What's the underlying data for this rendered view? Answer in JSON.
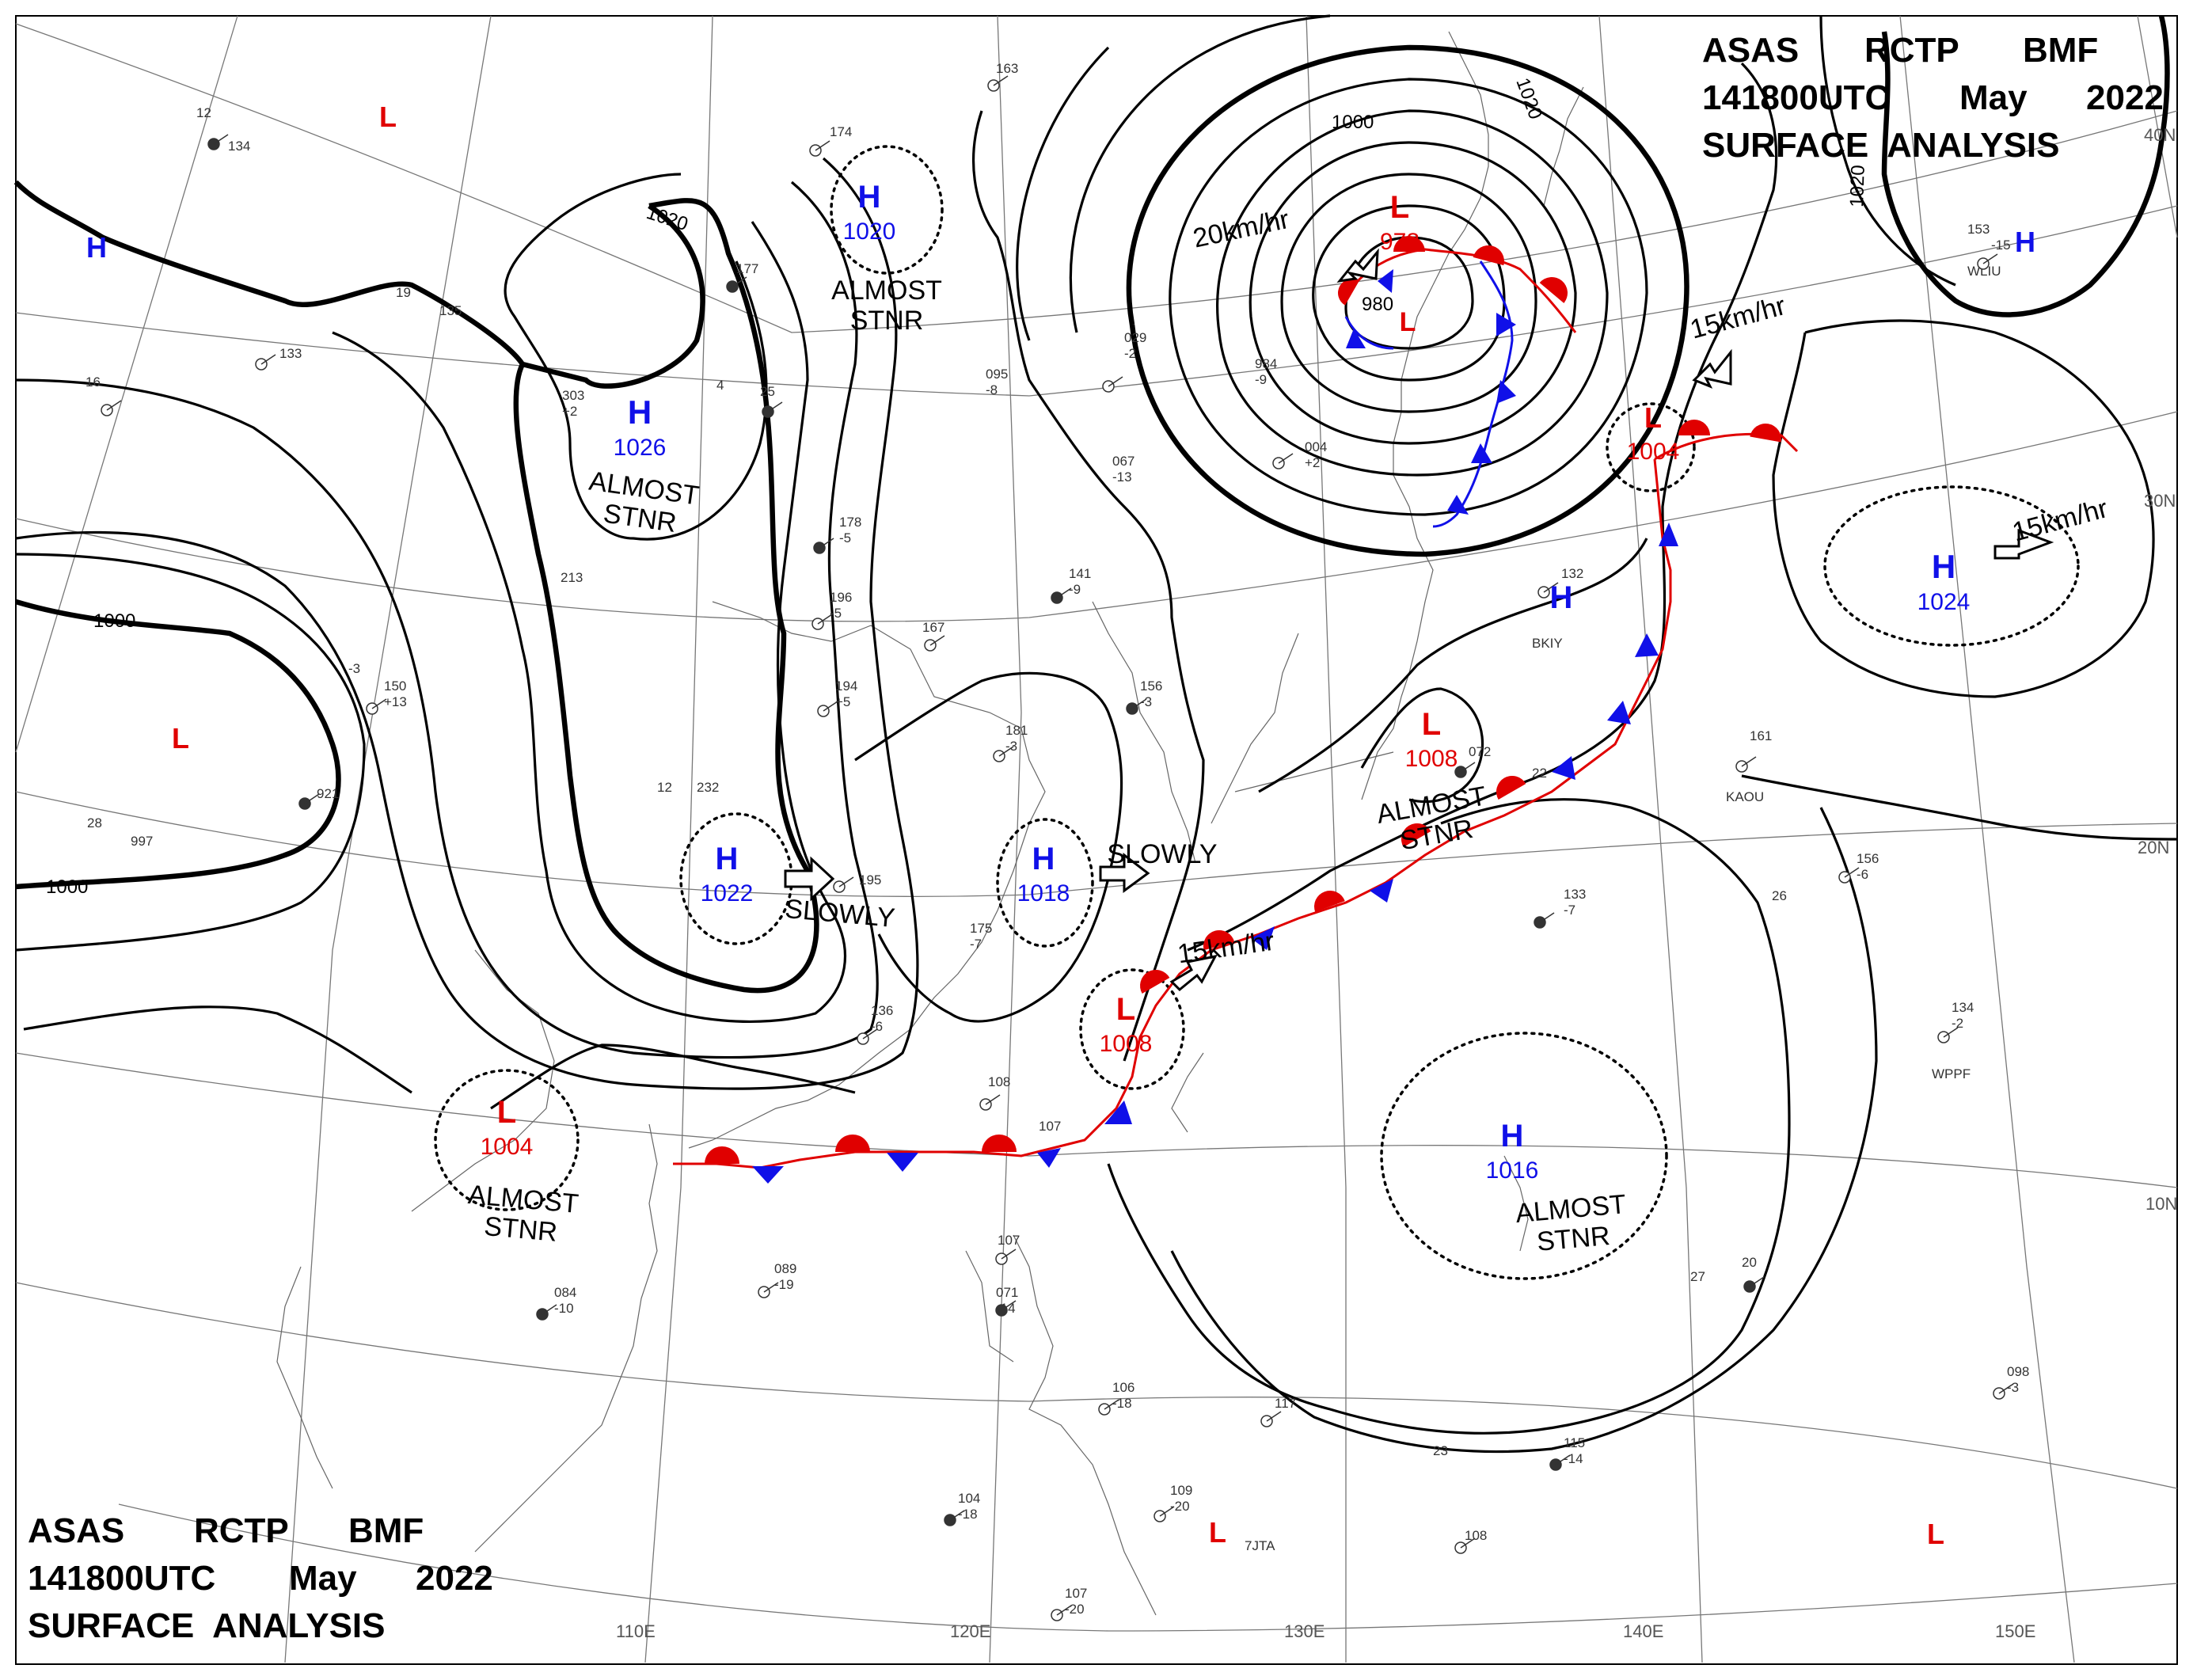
{
  "header_top": {
    "line1": [
      "ASAS",
      "RCTP",
      "BMF"
    ],
    "line2": [
      "141800UTC",
      "May",
      "2022"
    ],
    "line3": "SURFACE  ANALYSIS"
  },
  "header_bottom": {
    "line1": [
      "ASAS",
      "RCTP",
      "BMF"
    ],
    "line2": [
      "141800UTC",
      "May",
      "2022"
    ],
    "line3": "SURFACE  ANALYSIS"
  },
  "lon_labels": [
    "110E",
    "120E",
    "130E",
    "140E",
    "150E"
  ],
  "lat_labels": [
    "40N",
    "30N",
    "20N",
    "10N"
  ],
  "isobar_labels": [
    "1020",
    "1000",
    "980",
    "1020",
    "1020",
    "1000",
    "1000"
  ],
  "pressure_centers": [
    {
      "type": "H",
      "pressure": "",
      "color": "#1010e8"
    },
    {
      "type": "L",
      "pressure": "",
      "color": "#e00000"
    },
    {
      "type": "H",
      "pressure": "1020",
      "color": "#1010e8"
    },
    {
      "type": "H",
      "pressure": "1026",
      "color": "#1010e8"
    },
    {
      "type": "L",
      "pressure": "",
      "color": "#e00000"
    },
    {
      "type": "L",
      "pressure": "978",
      "color": "#e00000"
    },
    {
      "type": "L",
      "pressure": "",
      "color": "#e00000"
    },
    {
      "type": "H",
      "pressure": "",
      "color": "#1010e8"
    },
    {
      "type": "L",
      "pressure": "1004",
      "color": "#e00000"
    },
    {
      "type": "H",
      "pressure": "1024",
      "color": "#1010e8"
    },
    {
      "type": "H",
      "pressure": "",
      "color": "#1010e8"
    },
    {
      "type": "L",
      "pressure": "1008",
      "color": "#e00000"
    },
    {
      "type": "H",
      "pressure": "1022",
      "color": "#1010e8"
    },
    {
      "type": "H",
      "pressure": "1018",
      "color": "#1010e8"
    },
    {
      "type": "L",
      "pressure": "1008",
      "color": "#e00000"
    },
    {
      "type": "L",
      "pressure": "1004",
      "color": "#e00000"
    },
    {
      "type": "H",
      "pressure": "1016",
      "color": "#1010e8"
    },
    {
      "type": "L",
      "pressure": "",
      "color": "#e00000"
    },
    {
      "type": "L",
      "pressure": "",
      "color": "#e00000"
    }
  ],
  "motion_notes": [
    "ALMOST\nSTNR",
    "ALMOST\nSTNR",
    "20km/hr",
    "15km/hr",
    "15km/hr",
    "SLOWLY",
    "SLOWLY",
    "ALMOST\nSTNR",
    "15km/hr",
    "ALMOST\nSTNR",
    "ALMOST\nSTNR"
  ],
  "station_obs": [
    "12",
    "134",
    "163",
    "174",
    "177",
    "19",
    "135",
    "133",
    "16",
    "303",
    "+2",
    "4",
    "25",
    "029",
    "-2",
    "095",
    "-8",
    "984",
    "-9",
    "004",
    "+2",
    "067",
    "-13",
    "178",
    "-5",
    "196",
    "-5",
    "167",
    "141",
    "-9",
    "194",
    "+5",
    "213",
    "150",
    "+13",
    "-3",
    "921",
    "997",
    "28",
    "232",
    "12",
    "195",
    "181",
    "-3",
    "156",
    "-3",
    "175",
    "-7",
    "136",
    "-6",
    "108",
    "107",
    "084",
    "-10",
    "089",
    "-19",
    "107",
    "071",
    "-14",
    "106",
    "-18",
    "117",
    "104",
    "-18",
    "109",
    "-20",
    "107",
    "-20",
    "108",
    "115",
    "-14",
    "098",
    "-3",
    "134",
    "-2",
    "133",
    "-7",
    "156",
    "-6",
    "161",
    "072",
    "132",
    "BKIY",
    "KAOU",
    "WPPF",
    "7JTA",
    "WLIU",
    "153",
    "-15",
    "20",
    "27",
    "26",
    "23",
    "22"
  ]
}
